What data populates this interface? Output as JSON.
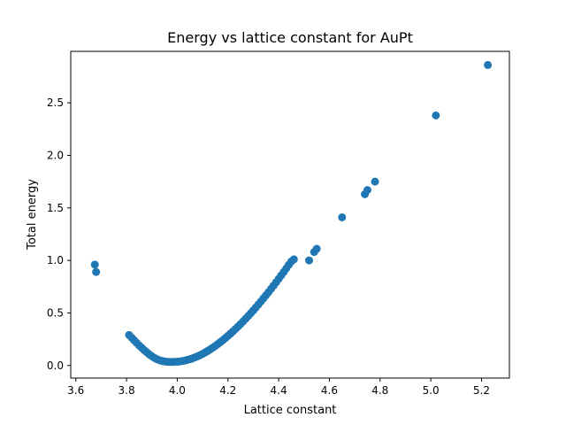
{
  "chart_data": {
    "type": "scatter",
    "title": "Energy vs lattice constant for AuPt",
    "xlabel": "Lattice constant",
    "ylabel": "Total energy",
    "xlim": [
      3.58,
      5.31
    ],
    "ylim": [
      -0.12,
      2.99
    ],
    "xticks": [
      3.6,
      3.8,
      4.0,
      4.2,
      4.4,
      4.6,
      4.8,
      5.0,
      5.2
    ],
    "xtick_labels": [
      "3.6",
      "3.8",
      "4.0",
      "4.2",
      "4.4",
      "4.6",
      "4.8",
      "5.0",
      "5.2"
    ],
    "yticks": [
      0.0,
      0.5,
      1.0,
      1.5,
      2.0,
      2.5
    ],
    "ytick_labels": [
      "0.0",
      "0.5",
      "1.0",
      "1.5",
      "2.0",
      "2.5"
    ],
    "grid": false,
    "marker_color": "#1f77b4",
    "points": [
      [
        3.675,
        0.96
      ],
      [
        3.68,
        0.89
      ],
      [
        3.81,
        0.29
      ],
      [
        3.82,
        0.265
      ],
      [
        3.83,
        0.24
      ],
      [
        3.84,
        0.215
      ],
      [
        3.85,
        0.19
      ],
      [
        3.86,
        0.168
      ],
      [
        3.87,
        0.145
      ],
      [
        3.88,
        0.125
      ],
      [
        3.89,
        0.105
      ],
      [
        3.9,
        0.088
      ],
      [
        3.91,
        0.072
      ],
      [
        3.92,
        0.06
      ],
      [
        3.93,
        0.05
      ],
      [
        3.94,
        0.043
      ],
      [
        3.95,
        0.038
      ],
      [
        3.96,
        0.035
      ],
      [
        3.97,
        0.034
      ],
      [
        3.98,
        0.034
      ],
      [
        3.99,
        0.035
      ],
      [
        4.0,
        0.036
      ],
      [
        4.01,
        0.038
      ],
      [
        4.02,
        0.042
      ],
      [
        4.03,
        0.047
      ],
      [
        4.04,
        0.053
      ],
      [
        4.05,
        0.06
      ],
      [
        4.06,
        0.068
      ],
      [
        4.07,
        0.077
      ],
      [
        4.08,
        0.087
      ],
      [
        4.09,
        0.098
      ],
      [
        4.1,
        0.11
      ],
      [
        4.11,
        0.124
      ],
      [
        4.12,
        0.138
      ],
      [
        4.13,
        0.153
      ],
      [
        4.14,
        0.169
      ],
      [
        4.15,
        0.186
      ],
      [
        4.16,
        0.204
      ],
      [
        4.17,
        0.222
      ],
      [
        4.18,
        0.241
      ],
      [
        4.19,
        0.261
      ],
      [
        4.2,
        0.282
      ],
      [
        4.21,
        0.303
      ],
      [
        4.22,
        0.325
      ],
      [
        4.23,
        0.348
      ],
      [
        4.24,
        0.371
      ],
      [
        4.25,
        0.395
      ],
      [
        4.26,
        0.42
      ],
      [
        4.27,
        0.445
      ],
      [
        4.28,
        0.471
      ],
      [
        4.29,
        0.497
      ],
      [
        4.3,
        0.524
      ],
      [
        4.31,
        0.552
      ],
      [
        4.32,
        0.58
      ],
      [
        4.33,
        0.609
      ],
      [
        4.34,
        0.638
      ],
      [
        4.35,
        0.668
      ],
      [
        4.36,
        0.698
      ],
      [
        4.37,
        0.729
      ],
      [
        4.38,
        0.76
      ],
      [
        4.39,
        0.792
      ],
      [
        4.4,
        0.824
      ],
      [
        4.41,
        0.857
      ],
      [
        4.42,
        0.89
      ],
      [
        4.43,
        0.924
      ],
      [
        4.44,
        0.958
      ],
      [
        4.45,
        0.99
      ],
      [
        4.46,
        1.01
      ],
      [
        4.52,
        1.0
      ],
      [
        4.54,
        1.08
      ],
      [
        4.55,
        1.11
      ],
      [
        4.65,
        1.41
      ],
      [
        4.74,
        1.63
      ],
      [
        4.75,
        1.67
      ],
      [
        4.78,
        1.75
      ],
      [
        5.02,
        2.38
      ],
      [
        5.225,
        2.86
      ]
    ]
  }
}
